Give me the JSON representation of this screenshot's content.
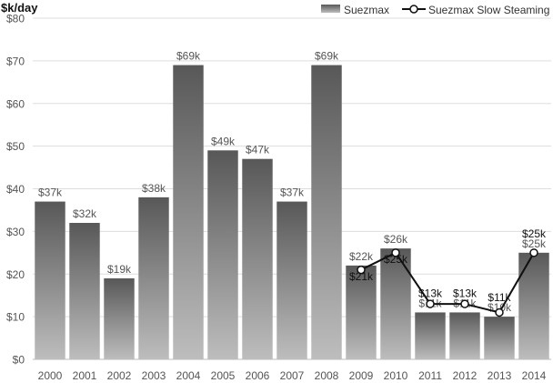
{
  "chart_data": {
    "type": "bar",
    "title": "",
    "ylabel": "$k/day",
    "xlabel": "",
    "ylim": [
      0,
      80
    ],
    "yticks": [
      0,
      10,
      20,
      30,
      40,
      50,
      60,
      70,
      80
    ],
    "ytick_labels": [
      "$0",
      "$10",
      "$20",
      "$30",
      "$40",
      "$50",
      "$60",
      "$70",
      "$80"
    ],
    "grid": true,
    "legend_position": "top-right",
    "categories": [
      "2000",
      "2001",
      "2002",
      "2003",
      "2004",
      "2005",
      "2006",
      "2007",
      "2008",
      "2009",
      "2010",
      "2011",
      "2012",
      "2013",
      "2014"
    ],
    "series": [
      {
        "name": "Suezmax",
        "kind": "bar",
        "color": "#8a8a8a",
        "values": [
          37,
          32,
          19,
          38,
          69,
          49,
          47,
          37,
          69,
          22,
          26,
          11,
          11,
          10,
          25
        ],
        "labels": [
          "$37k",
          "$32k",
          "$19k",
          "$38k",
          "$69k",
          "$49k",
          "$47k",
          "$37k",
          "$69k",
          "$22k",
          "$26k",
          "$11k",
          "$11k",
          "$10k",
          "$25k"
        ]
      },
      {
        "name": "Suezmax Slow Steaming",
        "kind": "line",
        "color": "#111111",
        "x": [
          "2009",
          "2010",
          "2011",
          "2012",
          "2013",
          "2014"
        ],
        "values": [
          21,
          25,
          13,
          13,
          11,
          25
        ],
        "labels": [
          "$21k",
          "$25k",
          "$13k",
          "$13k",
          "$11k",
          "$25k"
        ]
      }
    ]
  }
}
